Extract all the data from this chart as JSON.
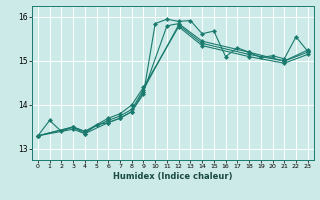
{
  "xlabel": "Humidex (Indice chaleur)",
  "bg_color": "#cceae7",
  "grid_color": "#ffffff",
  "line_color": "#1a7a6e",
  "xlim": [
    -0.5,
    23.5
  ],
  "ylim": [
    12.75,
    16.25
  ],
  "yticks": [
    13,
    14,
    15,
    16
  ],
  "xticks": [
    0,
    1,
    2,
    3,
    4,
    5,
    6,
    7,
    8,
    9,
    10,
    11,
    12,
    13,
    14,
    15,
    16,
    17,
    18,
    19,
    20,
    21,
    22,
    23
  ],
  "curves": [
    {
      "x": [
        0,
        1,
        2,
        3,
        4,
        5,
        6,
        7,
        8,
        9,
        10,
        11,
        12,
        13,
        14,
        15,
        16,
        17,
        18,
        19,
        20,
        21,
        22,
        23
      ],
      "y": [
        13.3,
        13.65,
        13.4,
        13.5,
        13.35,
        13.55,
        13.6,
        13.7,
        13.85,
        14.25,
        15.85,
        15.95,
        15.9,
        15.92,
        15.62,
        15.68,
        15.1,
        15.3,
        15.2,
        15.08,
        15.12,
        15.05,
        15.55,
        15.22
      ]
    },
    {
      "x": [
        0,
        3,
        4,
        6,
        7,
        8,
        9,
        11,
        12,
        14,
        18,
        21,
        23
      ],
      "y": [
        13.3,
        13.45,
        13.35,
        13.6,
        13.7,
        13.85,
        14.3,
        15.8,
        15.85,
        15.45,
        15.2,
        15.0,
        15.25
      ]
    },
    {
      "x": [
        0,
        3,
        4,
        6,
        7,
        8,
        9,
        12,
        14,
        18,
        21,
        23
      ],
      "y": [
        13.3,
        13.5,
        13.4,
        13.65,
        13.75,
        13.9,
        14.35,
        15.82,
        15.4,
        15.15,
        15.0,
        15.2
      ]
    },
    {
      "x": [
        0,
        3,
        4,
        6,
        7,
        8,
        9,
        12,
        14,
        18,
        21,
        23
      ],
      "y": [
        13.3,
        13.5,
        13.4,
        13.7,
        13.8,
        14.0,
        14.4,
        15.78,
        15.35,
        15.1,
        14.95,
        15.15
      ]
    }
  ]
}
